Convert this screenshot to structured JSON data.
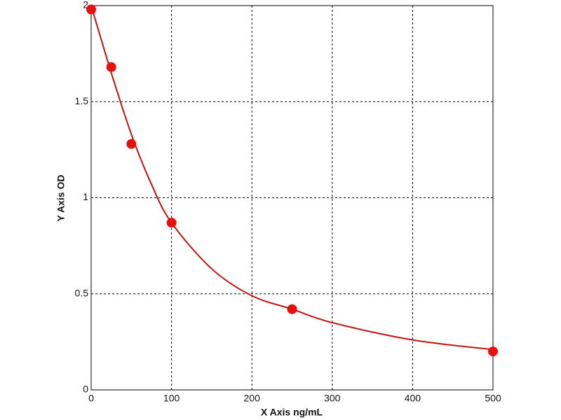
{
  "chart_data": {
    "type": "scatter",
    "x_label": "X Axis ng/mL",
    "y_label": "Y Axis OD",
    "series": [
      {
        "type": "scatter",
        "color": "#e8100c",
        "x": [
          0,
          25,
          50,
          100,
          250,
          500
        ],
        "values": [
          1.98,
          1.68,
          1.28,
          0.87,
          0.42,
          0.2
        ]
      },
      {
        "type": "line",
        "color": "#c0140e",
        "x": [
          0,
          25,
          50,
          75,
          100,
          150,
          200,
          250,
          300,
          400,
          500
        ],
        "values": [
          2.0,
          1.65,
          1.33,
          1.07,
          0.87,
          0.63,
          0.49,
          0.42,
          0.35,
          0.26,
          0.21
        ]
      }
    ],
    "xlim": [
      0,
      500
    ],
    "xticks": [
      0,
      100,
      200,
      300,
      400,
      500
    ],
    "ylim": [
      0,
      2
    ],
    "yticks": [
      0,
      0.5,
      1,
      1.5,
      2
    ],
    "grid": true
  }
}
